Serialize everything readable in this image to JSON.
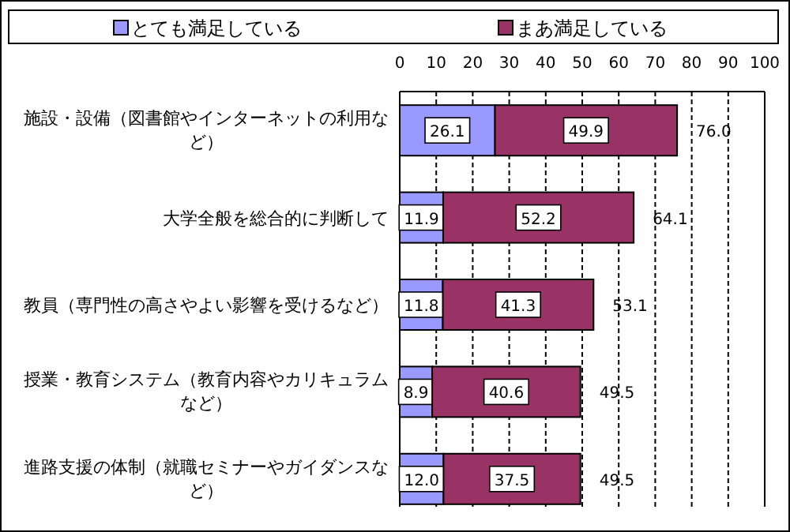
{
  "chart_data": {
    "type": "bar",
    "orientation": "horizontal",
    "stacked": true,
    "categories": [
      "施設・設備（図書館やインターネットの利用など）",
      "大学全般を総合的に判断して",
      "教員（専門性の高さやよい影響を受けるなど）",
      "授業・教育システム（教育内容やカリキュラムなど）",
      "進路支援の体制（就職セミナーやガイダンスなど）"
    ],
    "series": [
      {
        "name": "とても満足している",
        "color": "#9999ff",
        "values": [
          26.1,
          11.9,
          11.8,
          8.9,
          12.0
        ],
        "value_labels": [
          "26.1",
          "11.9",
          "11.8",
          "8.9",
          "12.0"
        ]
      },
      {
        "name": "まあ満足している",
        "color": "#993366",
        "values": [
          49.9,
          52.2,
          41.3,
          40.6,
          37.5
        ],
        "value_labels": [
          "49.9",
          "52.2",
          "41.3",
          "40.6",
          "37.5"
        ]
      }
    ],
    "totals": [
      "76.0",
      "64.1",
      "53.1",
      "49.5",
      "49.5"
    ],
    "xlim": [
      0,
      100
    ],
    "xticks": [
      0,
      10,
      20,
      30,
      40,
      50,
      60,
      70,
      80,
      90,
      100
    ],
    "grid": "x",
    "legend": "top"
  }
}
